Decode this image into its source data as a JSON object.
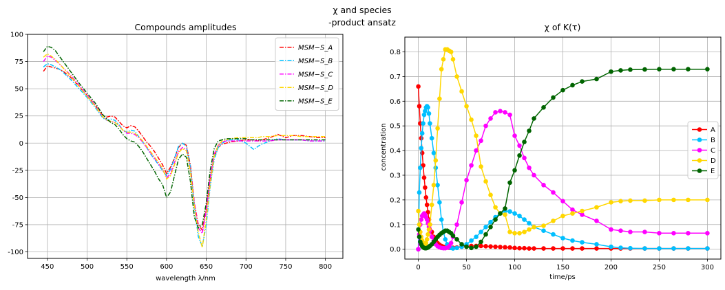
{
  "figure": {
    "suptitle_line1": "χ and species",
    "suptitle_line2": "-product ansatz"
  },
  "chart_data": [
    {
      "type": "line",
      "title": "Compounds amplitudes",
      "xlabel": "wavelength λ/nm",
      "ylabel": "",
      "xlim": [
        425,
        822
      ],
      "ylim": [
        -106,
        100
      ],
      "xticks": [
        450,
        500,
        550,
        600,
        650,
        700,
        750,
        800
      ],
      "yticks": [
        -100,
        -75,
        -50,
        -25,
        0,
        25,
        50,
        75,
        100
      ],
      "grid": true,
      "legend": "top-right",
      "x": [
        445,
        450,
        455,
        460,
        465,
        470,
        480,
        490,
        500,
        510,
        520,
        525,
        530,
        535,
        540,
        545,
        550,
        555,
        560,
        565,
        570,
        575,
        580,
        585,
        590,
        595,
        600,
        605,
        610,
        615,
        620,
        625,
        630,
        635,
        640,
        645,
        650,
        655,
        660,
        665,
        670,
        675,
        680,
        690,
        700,
        705,
        710,
        715,
        720,
        730,
        740,
        750,
        760,
        770,
        780,
        790,
        800
      ],
      "series": [
        {
          "name": "MSM−S_A",
          "color": "#ff0000",
          "dash": "dashdot",
          "values": [
            66,
            71,
            70,
            69,
            68,
            66,
            60,
            52,
            44,
            35,
            25,
            24,
            25,
            24,
            20,
            16,
            14,
            16,
            15,
            11,
            6,
            1,
            -3,
            -8,
            -14,
            -20,
            -28,
            -22,
            -14,
            -4,
            0,
            -2,
            -20,
            -55,
            -75,
            -80,
            -60,
            -32,
            -12,
            -4,
            -1,
            0,
            1,
            2,
            3,
            3,
            3,
            2,
            3,
            5,
            8,
            5,
            7,
            7,
            6,
            5,
            5
          ]
        },
        {
          "name": "MSM−S_B",
          "color": "#00bfff",
          "dash": "dashdot",
          "values": [
            70,
            73,
            72,
            70,
            68,
            65,
            58,
            50,
            42,
            33,
            23,
            21,
            22,
            21,
            17,
            12,
            10,
            12,
            11,
            6,
            1,
            -4,
            -10,
            -15,
            -20,
            -25,
            -30,
            -24,
            -14,
            -3,
            0,
            -3,
            -22,
            -58,
            -86,
            -95,
            -75,
            -40,
            -15,
            -4,
            0,
            2,
            3,
            3,
            0,
            -3,
            -6,
            -3,
            -1,
            2,
            4,
            3,
            3,
            3,
            2,
            2,
            2
          ]
        },
        {
          "name": "MSM−S_C",
          "color": "#ff00ff",
          "dash": "dashdot",
          "values": [
            75,
            80,
            79,
            76,
            73,
            69,
            62,
            53,
            44,
            35,
            24,
            21,
            20,
            19,
            16,
            12,
            9,
            9,
            8,
            5,
            1,
            -4,
            -9,
            -14,
            -19,
            -24,
            -32,
            -28,
            -18,
            -8,
            -4,
            -6,
            -25,
            -55,
            -78,
            -83,
            -62,
            -32,
            -10,
            -2,
            1,
            2,
            2,
            2,
            2,
            2,
            2,
            2,
            2,
            2,
            3,
            3,
            3,
            3,
            2,
            2,
            2
          ]
        },
        {
          "name": "MSM−S_D",
          "color": "#ffd700",
          "dash": "dashdot",
          "values": [
            79,
            82,
            80,
            77,
            73,
            69,
            61,
            52,
            43,
            34,
            24,
            21,
            20,
            19,
            16,
            12,
            10,
            10,
            9,
            6,
            2,
            -3,
            -8,
            -13,
            -18,
            -23,
            -33,
            -30,
            -20,
            -9,
            -5,
            -7,
            -26,
            -58,
            -82,
            -96,
            -70,
            -38,
            -12,
            -2,
            2,
            3,
            4,
            5,
            5,
            5,
            5,
            5,
            6,
            6,
            7,
            7,
            7,
            6,
            6,
            6,
            6
          ]
        },
        {
          "name": "MSM−S_E",
          "color": "#006400",
          "dash": "dashdot",
          "values": [
            84,
            89,
            88,
            85,
            80,
            75,
            65,
            55,
            46,
            37,
            26,
            22,
            19,
            17,
            13,
            8,
            4,
            2,
            1,
            -3,
            -8,
            -14,
            -20,
            -26,
            -33,
            -38,
            -50,
            -45,
            -30,
            -15,
            -10,
            -13,
            -35,
            -68,
            -78,
            -75,
            -55,
            -25,
            -5,
            2,
            3,
            4,
            4,
            4,
            4,
            3,
            3,
            3,
            3,
            3,
            3,
            3,
            3,
            3,
            3,
            3,
            3
          ]
        }
      ]
    },
    {
      "type": "line",
      "title": "χ of K(τ)",
      "xlabel": "time/ps",
      "ylabel": "concentration",
      "xlim": [
        -14,
        314
      ],
      "ylim": [
        -0.04,
        0.86
      ],
      "xticks": [
        0,
        50,
        100,
        150,
        200,
        250,
        300
      ],
      "yticks": [
        0.0,
        0.1,
        0.2,
        0.3,
        0.4,
        0.5,
        0.6,
        0.7,
        0.8
      ],
      "grid": true,
      "legend": "center-right",
      "markers": "circle",
      "x": [
        0,
        1,
        2,
        3,
        4,
        5,
        6,
        7,
        8,
        9,
        10,
        11,
        12,
        14,
        16,
        18,
        20,
        22,
        24,
        26,
        28,
        30,
        32,
        34,
        36,
        40,
        45,
        50,
        55,
        60,
        65,
        70,
        75,
        80,
        85,
        90,
        95,
        100,
        105,
        110,
        115,
        120,
        130,
        140,
        150,
        160,
        170,
        185,
        200,
        210,
        220,
        235,
        250,
        265,
        280,
        300
      ],
      "series": [
        {
          "name": "A",
          "color": "#ff0000",
          "values": [
            0.66,
            0.58,
            0.51,
            0.45,
            0.39,
            0.34,
            0.29,
            0.25,
            0.21,
            0.18,
            0.15,
            0.12,
            0.1,
            0.07,
            0.05,
            0.035,
            0.025,
            0.018,
            0.013,
            0.01,
            0.008,
            0.007,
            0.006,
            0.006,
            0.006,
            0.007,
            0.01,
            0.012,
            0.013,
            0.013,
            0.013,
            0.012,
            0.011,
            0.01,
            0.009,
            0.008,
            0.007,
            0.005,
            0.004,
            0.004,
            0.003,
            0.003,
            0.003,
            0.003,
            0.003,
            0.003,
            0.003,
            0.003,
            0.003,
            0.003,
            0.003,
            0.003,
            0.003,
            0.003,
            0.003,
            0.003
          ]
        },
        {
          "name": "B",
          "color": "#00bfff",
          "values": [
            0.0,
            0.23,
            0.33,
            0.41,
            0.47,
            0.51,
            0.545,
            0.56,
            0.575,
            0.58,
            0.575,
            0.55,
            0.51,
            0.45,
            0.39,
            0.33,
            0.26,
            0.19,
            0.12,
            0.07,
            0.04,
            0.02,
            0.01,
            0.005,
            0.003,
            0.005,
            0.01,
            0.02,
            0.035,
            0.05,
            0.07,
            0.09,
            0.11,
            0.13,
            0.145,
            0.155,
            0.153,
            0.145,
            0.135,
            0.12,
            0.105,
            0.09,
            0.075,
            0.06,
            0.045,
            0.035,
            0.028,
            0.02,
            0.01,
            0.006,
            0.004,
            0.003,
            0.003,
            0.003,
            0.003,
            0.003
          ]
        },
        {
          "name": "C",
          "color": "#ff00ff",
          "values": [
            0.0,
            0.06,
            0.1,
            0.12,
            0.135,
            0.14,
            0.145,
            0.14,
            0.13,
            0.12,
            0.105,
            0.09,
            0.075,
            0.05,
            0.035,
            0.02,
            0.012,
            0.008,
            0.005,
            0.004,
            0.004,
            0.006,
            0.012,
            0.025,
            0.05,
            0.1,
            0.19,
            0.28,
            0.34,
            0.4,
            0.44,
            0.5,
            0.53,
            0.555,
            0.56,
            0.555,
            0.545,
            0.46,
            0.42,
            0.37,
            0.33,
            0.3,
            0.26,
            0.23,
            0.195,
            0.16,
            0.14,
            0.115,
            0.08,
            0.075,
            0.07,
            0.07,
            0.065,
            0.065,
            0.065,
            0.065
          ]
        },
        {
          "name": "D",
          "color": "#ffd700",
          "values": [
            0.155,
            0.1,
            0.07,
            0.05,
            0.035,
            0.025,
            0.02,
            0.02,
            0.025,
            0.04,
            0.06,
            0.08,
            0.1,
            0.18,
            0.26,
            0.36,
            0.49,
            0.61,
            0.73,
            0.77,
            0.81,
            0.81,
            0.805,
            0.8,
            0.77,
            0.7,
            0.64,
            0.58,
            0.525,
            0.46,
            0.335,
            0.275,
            0.22,
            0.17,
            0.145,
            0.14,
            0.07,
            0.065,
            0.065,
            0.07,
            0.08,
            0.09,
            0.095,
            0.115,
            0.135,
            0.145,
            0.155,
            0.17,
            0.19,
            0.195,
            0.197,
            0.197,
            0.2,
            0.2,
            0.2,
            0.2
          ]
        },
        {
          "name": "E",
          "color": "#006400",
          "values": [
            0.08,
            0.05,
            0.03,
            0.02,
            0.012,
            0.008,
            0.005,
            0.004,
            0.004,
            0.005,
            0.007,
            0.01,
            0.013,
            0.02,
            0.03,
            0.04,
            0.05,
            0.058,
            0.065,
            0.07,
            0.075,
            0.075,
            0.07,
            0.065,
            0.055,
            0.04,
            0.02,
            0.01,
            0.005,
            0.01,
            0.03,
            0.06,
            0.09,
            0.12,
            0.145,
            0.165,
            0.27,
            0.32,
            0.38,
            0.435,
            0.48,
            0.53,
            0.575,
            0.615,
            0.645,
            0.665,
            0.68,
            0.69,
            0.72,
            0.725,
            0.728,
            0.729,
            0.73,
            0.73,
            0.73,
            0.73
          ]
        }
      ]
    }
  ]
}
